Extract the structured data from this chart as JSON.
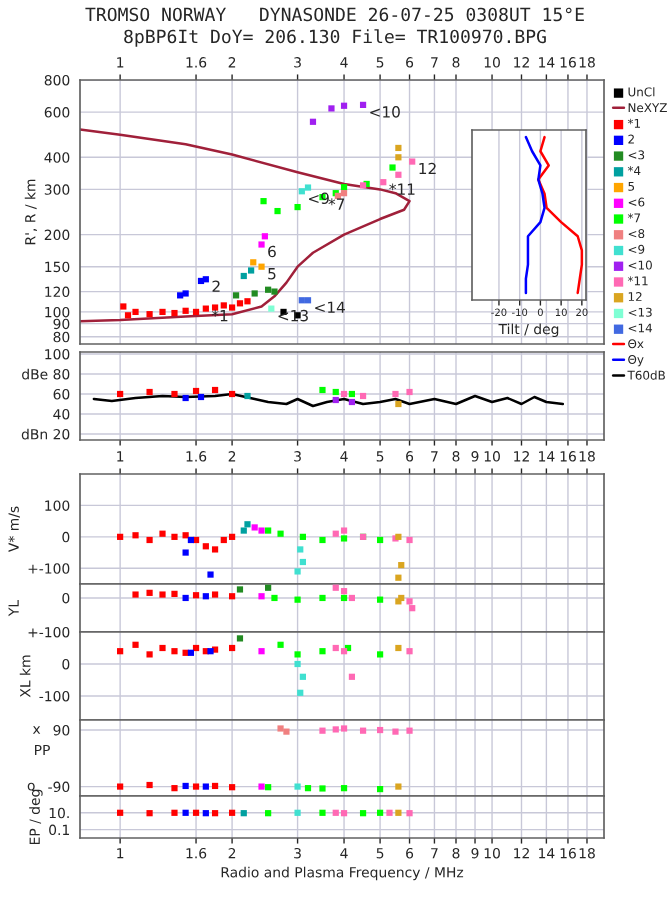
{
  "chart_data": [
    {
      "type": "scatter",
      "title": "TROMSO NORWAY   DYNASONDE 26-07-25 0308UT 15°E",
      "subtitle": "8pBP6It DoY= 206.130 File= TR100970.BPG",
      "ylabel": "R', R / km",
      "log": "xy",
      "xlim": [
        0.78,
        20
      ],
      "ylim": [
        75,
        800
      ],
      "xticks": [
        1,
        1.6,
        2,
        3,
        4,
        5,
        6,
        7,
        8,
        10,
        12,
        14,
        16,
        18
      ],
      "yticks": [
        80,
        90,
        100,
        120,
        150,
        200,
        300,
        400,
        600,
        800
      ],
      "grid": true,
      "legend": "right",
      "marker": "square",
      "series": [
        {
          "name": "UnCl",
          "color": "#000000",
          "x": [
            2.75,
            3.0
          ],
          "values": [
            100,
            97
          ]
        },
        {
          "name": "NeXYZ",
          "type": "line",
          "marker": "none",
          "color": "#a0203a",
          "x": [
            0.78,
            1.0,
            1.5,
            2,
            3,
            4,
            5,
            5.5,
            6.0,
            5.8,
            5.0,
            4.0,
            3.3,
            3.0,
            2.8,
            2.6,
            2.4,
            2.0,
            1.5,
            1.0,
            0.78
          ],
          "values": [
            513,
            490,
            450,
            410,
            350,
            315,
            300,
            290,
            270,
            250,
            230,
            200,
            170,
            150,
            130,
            115,
            105,
            98,
            96,
            93,
            92
          ]
        },
        {
          "name": "*1",
          "color": "#ff0000",
          "x": [
            1.02,
            1.05,
            1.1,
            1.2,
            1.3,
            1.4,
            1.5,
            1.6,
            1.7,
            1.8,
            1.9,
            2.0,
            2.1,
            2.2
          ],
          "values": [
            105,
            97,
            100,
            98,
            100,
            99,
            101,
            100,
            103,
            104,
            106,
            104,
            108,
            110
          ]
        },
        {
          "name": "2",
          "color": "#0000ff",
          "x": [
            1.45,
            1.5,
            1.65,
            1.7
          ],
          "values": [
            116,
            118,
            132,
            134
          ]
        },
        {
          "name": "<3",
          "color": "#228b22",
          "x": [
            2.05,
            2.3,
            2.5,
            2.6
          ],
          "values": [
            116,
            118,
            122,
            120
          ]
        },
        {
          "name": "*4",
          "color": "#00a0a0",
          "x": [
            2.15,
            2.25
          ],
          "values": [
            138,
            145
          ]
        },
        {
          "name": "5",
          "color": "#ffa500",
          "x": [
            2.28,
            2.4
          ],
          "values": [
            156,
            150
          ]
        },
        {
          "name": "<6",
          "color": "#ff00ff",
          "x": [
            2.4,
            2.45
          ],
          "values": [
            183,
            197
          ]
        },
        {
          "name": "*7",
          "color": "#00ff00",
          "x": [
            2.43,
            2.65,
            3.0,
            3.5,
            3.8,
            4.0,
            4.6,
            5.4
          ],
          "values": [
            270,
            247,
            256,
            280,
            290,
            306,
            315,
            365
          ]
        },
        {
          "name": "<8",
          "color": "#f08080",
          "x": [
            3.85,
            4.0
          ],
          "values": [
            283,
            290
          ]
        },
        {
          "name": "<9",
          "color": "#40e0d0",
          "x": [
            3.08,
            3.2
          ],
          "values": [
            295,
            305
          ]
        },
        {
          "name": "<10",
          "color": "#a020f0",
          "x": [
            3.3,
            3.7,
            4.0,
            4.5
          ],
          "values": [
            550,
            620,
            635,
            640
          ]
        },
        {
          "name": "*11",
          "color": "#ff69b4",
          "x": [
            4.5,
            5.1,
            5.6,
            6.1
          ],
          "values": [
            311,
            320,
            342,
            385
          ]
        },
        {
          "name": "12",
          "color": "#daa520",
          "x": [
            5.6,
            5.6
          ],
          "values": [
            400,
            435
          ]
        },
        {
          "name": "<13",
          "color": "#7fffd4",
          "x": [
            2.55
          ],
          "values": [
            103
          ]
        },
        {
          "name": "<14",
          "color": "#4169e1",
          "x": [
            3.08,
            3.2
          ],
          "values": [
            111,
            111
          ]
        }
      ],
      "annotations": [
        {
          "text": "*1",
          "x": 1.7,
          "y": 103
        },
        {
          "text": "2",
          "x": 1.7,
          "y": 134
        },
        {
          "text": "5",
          "x": 2.4,
          "y": 150
        },
        {
          "text": "6",
          "x": 2.4,
          "y": 183
        },
        {
          "text": "<9",
          "x": 3.08,
          "y": 295
        },
        {
          "text": "*7",
          "x": 3.5,
          "y": 280
        },
        {
          "text": "*11",
          "x": 5.1,
          "y": 320
        },
        {
          "text": "12",
          "x": 6.1,
          "y": 385
        },
        {
          "text": "<10",
          "x": 4.5,
          "y": 640
        },
        {
          "text": "<13",
          "x": 2.55,
          "y": 103
        },
        {
          "text": "<14",
          "x": 3.2,
          "y": 111
        }
      ]
    },
    {
      "type": "line",
      "orientation": "horizontal",
      "xlabel": "Tilt / deg",
      "xlim": [
        -33,
        22
      ],
      "xticks": [
        -20,
        -10,
        0,
        10,
        20
      ],
      "grid": "x",
      "tick_labels": "x",
      "legend": "right",
      "categories": [
        null,
        null,
        null,
        null,
        null,
        null,
        null,
        null,
        null,
        null,
        null,
        null
      ],
      "series": [
        {
          "name": "Θx",
          "color": "#ff0000",
          "values": [
            2,
            0,
            4,
            -1,
            2,
            3,
            10,
            18,
            20,
            20,
            19,
            18
          ]
        },
        {
          "name": "Θy",
          "color": "#0000ff",
          "values": [
            -7,
            -4,
            0,
            -1,
            1,
            2,
            0,
            -6,
            -6,
            -6,
            -7,
            -7
          ]
        }
      ]
    },
    {
      "type": "scatter",
      "log": "x",
      "xlim": [
        0.78,
        20
      ],
      "ylim": [
        14,
        102
      ],
      "xticks": [
        1,
        1.6,
        2,
        3,
        4,
        5,
        6,
        7,
        8,
        10,
        12,
        14,
        16,
        18
      ],
      "yticks": [
        {
          "value": 100,
          "label": "100"
        },
        {
          "value": 80,
          "label": "dBe 80"
        },
        60,
        40,
        {
          "value": 20,
          "label": "dBn 20"
        }
      ],
      "grid": true,
      "tick_labels": "y",
      "legend": "right",
      "marker": "square",
      "series": [
        {
          "name": "T60dB",
          "type": "line",
          "marker": "none",
          "color": "#000000",
          "x": [
            0.85,
            0.95,
            1.1,
            1.3,
            1.5,
            1.8,
            2.0,
            2.3,
            2.5,
            2.8,
            3.0,
            3.3,
            3.6,
            4.0,
            4.5,
            5.0,
            5.5,
            6.0,
            7,
            8,
            9,
            10,
            11,
            12,
            13,
            14,
            15.5
          ],
          "values": [
            55,
            53,
            56,
            58,
            57,
            58,
            60,
            55,
            52,
            50,
            55,
            48,
            52,
            55,
            50,
            52,
            55,
            50,
            55,
            50,
            58,
            52,
            56,
            50,
            57,
            52,
            50
          ]
        },
        {
          "color": "#ff0000",
          "x": [
            1.0,
            1.2,
            1.4,
            1.6,
            1.8,
            2.0
          ],
          "values": [
            60,
            62,
            60,
            63,
            64,
            60
          ]
        },
        {
          "color": "#0000ff",
          "x": [
            1.5,
            1.65
          ],
          "values": [
            56,
            57
          ]
        },
        {
          "color": "#00a0a0",
          "x": [
            2.2
          ],
          "values": [
            58
          ]
        },
        {
          "color": "#00ff00",
          "x": [
            3.5,
            3.8,
            4.2
          ],
          "values": [
            64,
            62,
            60
          ]
        },
        {
          "color": "#a020f0",
          "x": [
            3.8,
            4.2
          ],
          "values": [
            54,
            52
          ]
        },
        {
          "color": "#ff69b4",
          "x": [
            4.0,
            4.5,
            5.5,
            6.0
          ],
          "values": [
            60,
            58,
            60,
            62
          ]
        },
        {
          "color": "#daa520",
          "x": [
            5.6
          ],
          "values": [
            50
          ]
        }
      ]
    },
    {
      "type": "scatter",
      "ylabel": "V* m/s",
      "log": "x",
      "xlim": [
        0.78,
        20
      ],
      "ylim": [
        -150,
        200
      ],
      "xticks": [
        1,
        1.6,
        2,
        3,
        4,
        5,
        6,
        7,
        8,
        9,
        10,
        12,
        14,
        16,
        18
      ],
      "yticks": [
        100,
        0,
        {
          "value": -100,
          "label": "+-100"
        }
      ],
      "grid": true,
      "marker": "square",
      "series": [
        {
          "color": "#ff0000",
          "x": [
            1.0,
            1.1,
            1.2,
            1.3,
            1.4,
            1.5,
            1.6,
            1.7,
            1.8,
            1.9,
            2.0
          ],
          "values": [
            0,
            5,
            -10,
            10,
            0,
            5,
            -10,
            -30,
            -40,
            -10,
            0
          ]
        },
        {
          "color": "#0000ff",
          "x": [
            1.55,
            1.5,
            1.75
          ],
          "values": [
            -10,
            -50,
            -120
          ]
        },
        {
          "color": "#00a0a0",
          "x": [
            2.15,
            2.2
          ],
          "values": [
            20,
            40
          ]
        },
        {
          "color": "#ff00ff",
          "x": [
            2.3,
            2.4
          ],
          "values": [
            30,
            20
          ]
        },
        {
          "color": "#00ff00",
          "x": [
            2.5,
            2.7,
            3.1,
            3.5,
            4.0,
            4.5,
            5.0
          ],
          "values": [
            20,
            10,
            0,
            -10,
            -5,
            0,
            -10
          ]
        },
        {
          "color": "#40e0d0",
          "x": [
            3.05,
            3.1,
            3.0
          ],
          "values": [
            -40,
            -80,
            -110
          ]
        },
        {
          "color": "#ff69b4",
          "x": [
            3.8,
            4.0,
            4.5,
            5.5,
            6.0
          ],
          "values": [
            10,
            20,
            0,
            -5,
            -10
          ]
        },
        {
          "color": "#daa520",
          "x": [
            5.6,
            5.7,
            5.6
          ],
          "values": [
            0,
            -90,
            -130
          ]
        }
      ]
    },
    {
      "type": "scatter",
      "ylabel": "YL",
      "log": "x",
      "xlim": [
        0.78,
        20
      ],
      "ylim": [
        -100,
        41
      ],
      "xticks": [
        1,
        1.6,
        2,
        3,
        4,
        5,
        6,
        7,
        8,
        9,
        10,
        12,
        14,
        16,
        18
      ],
      "yticks": [
        0,
        {
          "value": -100,
          "label": "+-100"
        }
      ],
      "grid": true,
      "tick_labels": "y",
      "marker": "square",
      "series": [
        {
          "color": "#ff0000",
          "x": [
            1.1,
            1.2,
            1.3,
            1.4,
            1.6,
            1.8,
            2.0
          ],
          "values": [
            10,
            15,
            10,
            12,
            8,
            10,
            5
          ]
        },
        {
          "color": "#0000ff",
          "x": [
            1.5,
            1.7
          ],
          "values": [
            0,
            5
          ]
        },
        {
          "color": "#228b22",
          "x": [
            2.1,
            2.5
          ],
          "values": [
            25,
            30
          ]
        },
        {
          "color": "#ff00ff",
          "x": [
            2.4
          ],
          "values": [
            5
          ]
        },
        {
          "color": "#00ff00",
          "x": [
            2.6,
            3.0,
            3.5,
            4.0,
            5.0
          ],
          "values": [
            0,
            -5,
            0,
            0,
            -5
          ]
        },
        {
          "color": "#ff69b4",
          "x": [
            3.8,
            4.0,
            4.2,
            6.0,
            6.1
          ],
          "values": [
            30,
            20,
            0,
            -10,
            -30
          ]
        },
        {
          "color": "#daa520",
          "x": [
            5.6,
            5.7
          ],
          "values": [
            -10,
            0
          ]
        }
      ]
    },
    {
      "type": "scatter",
      "ylabel": "XL km",
      "log": "x",
      "xlim": [
        0.78,
        20
      ],
      "ylim": [
        -175,
        100
      ],
      "xticks": [
        1,
        1.6,
        2,
        3,
        4,
        5,
        6,
        7,
        8,
        9,
        10,
        12,
        14,
        16,
        18
      ],
      "yticks": [
        0,
        -100
      ],
      "grid": true,
      "tick_labels": "y",
      "marker": "square",
      "series": [
        {
          "color": "#ff0000",
          "x": [
            1.0,
            1.1,
            1.2,
            1.3,
            1.4,
            1.5,
            1.6,
            1.7,
            1.8,
            2.0
          ],
          "values": [
            40,
            60,
            30,
            50,
            40,
            35,
            50,
            40,
            45,
            50
          ]
        },
        {
          "color": "#0000ff",
          "x": [
            1.55,
            1.75
          ],
          "values": [
            35,
            40
          ]
        },
        {
          "color": "#228b22",
          "x": [
            2.1
          ],
          "values": [
            80
          ]
        },
        {
          "color": "#ff00ff",
          "x": [
            2.4
          ],
          "values": [
            40
          ]
        },
        {
          "color": "#00ff00",
          "x": [
            2.7,
            3.0,
            3.5,
            4.1,
            5.0
          ],
          "values": [
            60,
            30,
            40,
            50,
            30
          ]
        },
        {
          "color": "#40e0d0",
          "x": [
            3.0,
            3.1,
            3.05
          ],
          "values": [
            0,
            -40,
            -90
          ]
        },
        {
          "color": "#ff69b4",
          "x": [
            3.8,
            4.0,
            4.2,
            6.0
          ],
          "values": [
            50,
            40,
            -40,
            40
          ]
        },
        {
          "color": "#daa520",
          "x": [
            5.6
          ],
          "values": [
            50
          ]
        }
      ]
    },
    {
      "type": "scatter",
      "ylabel": "PP",
      "log": "x",
      "xlim": [
        0.78,
        20
      ],
      "ylim": [
        -120,
        122
      ],
      "xticks": [
        1,
        1.6,
        2,
        3,
        4,
        5,
        6,
        7,
        8,
        9,
        10,
        12,
        14,
        16,
        18
      ],
      "yticks": [
        90,
        -90
      ],
      "annotations": [
        "x",
        "o"
      ],
      "grid": true,
      "tick_labels": "y",
      "marker": "square",
      "series": [
        {
          "color": "#f08080",
          "x": [
            2.7,
            2.8
          ],
          "values": [
            95,
            85
          ]
        },
        {
          "color": "#ff69b4",
          "x": [
            3.5,
            3.8,
            4.0,
            4.5,
            5.0,
            5.5,
            6.0
          ],
          "values": [
            88,
            92,
            95,
            88,
            90,
            85,
            88
          ]
        },
        {
          "color": "#ff0000",
          "x": [
            1.0,
            1.2,
            1.4,
            1.6,
            1.8,
            2.0
          ],
          "values": [
            -90,
            -85,
            -95,
            -90,
            -88,
            -92
          ]
        },
        {
          "color": "#0000ff",
          "x": [
            1.5,
            1.7
          ],
          "values": [
            -88,
            -90
          ]
        },
        {
          "color": "#ff00ff",
          "x": [
            2.4
          ],
          "values": [
            -90
          ]
        },
        {
          "color": "#00ff00",
          "x": [
            2.5,
            3.2,
            3.5,
            4.0,
            5.0
          ],
          "values": [
            -92,
            -95,
            -96,
            -95,
            -98
          ]
        },
        {
          "color": "#40e0d0",
          "x": [
            3.0
          ],
          "values": [
            -90
          ]
        },
        {
          "color": "#daa520",
          "x": [
            5.6
          ],
          "values": [
            -90
          ]
        }
      ]
    },
    {
      "type": "scatter",
      "ylabel": "EP / deg",
      "log": "xy",
      "xlim": [
        0.78,
        20
      ],
      "ylim": [
        0.01,
        1000
      ],
      "xticks": [
        1,
        1.6,
        2,
        3,
        4,
        5,
        6,
        7,
        8,
        9,
        10,
        12,
        14,
        16,
        18
      ],
      "yticks": [
        {
          "value": 10,
          "label": "10."
        },
        0.1
      ],
      "xlabel": "Radio and Plasma Frequency / MHz",
      "grid": true,
      "marker": "square",
      "series": [
        {
          "color": "#ff0000",
          "x": [
            1.0,
            1.2,
            1.4,
            1.6,
            1.8,
            2.0
          ],
          "values": [
            10,
            9,
            10,
            10,
            9,
            10
          ]
        },
        {
          "color": "#0000ff",
          "x": [
            1.5,
            1.7
          ],
          "values": [
            10,
            9
          ]
        },
        {
          "color": "#00a0a0",
          "x": [
            2.15
          ],
          "values": [
            9
          ]
        },
        {
          "color": "#00ff00",
          "x": [
            2.5,
            3.5,
            4.5,
            5.0
          ],
          "values": [
            9,
            10,
            9,
            10
          ]
        },
        {
          "color": "#40e0d0",
          "x": [
            3.0
          ],
          "values": [
            10
          ]
        },
        {
          "color": "#ff69b4",
          "x": [
            3.8,
            4.0,
            5.3,
            6.0
          ],
          "values": [
            10,
            9,
            10,
            9
          ]
        },
        {
          "color": "#daa520",
          "x": [
            5.6
          ],
          "values": [
            10
          ]
        }
      ]
    }
  ]
}
